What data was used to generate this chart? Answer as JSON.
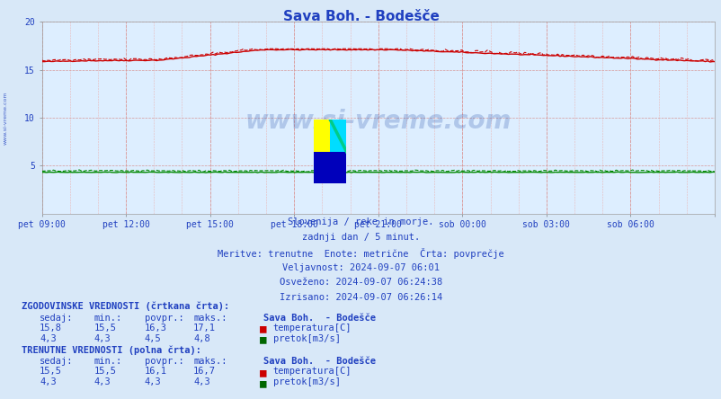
{
  "title": "Sava Boh. - Bodešče",
  "bg_color": "#d8e8f8",
  "plot_bg_color": "#ddeeff",
  "title_color": "#2040c0",
  "text_color": "#2040c0",
  "grid_color": "#e8a0a0",
  "ylim": [
    0,
    20
  ],
  "y_label_ticks": [
    5,
    10,
    15,
    20
  ],
  "x_tick_labels": [
    "pet 09:00",
    "pet 12:00",
    "pet 15:00",
    "pet 18:00",
    "pet 21:00",
    "sob 00:00",
    "sob 03:00",
    "sob 06:00"
  ],
  "n_points": 288,
  "temp_color": "#cc0000",
  "flow_color": "#008800",
  "subtitle_lines": [
    "Slovenija / reke in morje.",
    "zadnji dan / 5 minut.",
    "Meritve: trenutne  Enote: metrične  Črta: povprečje",
    "Veljavnost: 2024-09-07 06:01",
    "Osveženo: 2024-09-07 06:24:38",
    "Izrisano: 2024-09-07 06:26:14"
  ],
  "hist_label": "ZGODOVINSKE VREDNOSTI (črtkana črta):",
  "curr_label": "TRENUTNE VREDNOSTI (polna črta):",
  "table_header": [
    "sedaj:",
    "min.:",
    "povpr.:",
    "maks.:",
    "Sava Boh.  - Bodešče"
  ],
  "hist_temp_row": [
    "15,8",
    "15,5",
    "16,3",
    "17,1",
    "temperatura[C]"
  ],
  "hist_flow_row": [
    "4,3",
    "4,3",
    "4,5",
    "4,8",
    "pretok[m3/s]"
  ],
  "curr_temp_row": [
    "15,5",
    "15,5",
    "16,1",
    "16,7",
    "temperatura[C]"
  ],
  "curr_flow_row": [
    "4,3",
    "4,3",
    "4,3",
    "4,3",
    "pretok[m3/s]"
  ],
  "temp_color_hist_square": "#cc0000",
  "flow_color_hist_square": "#006600",
  "temp_color_curr_square": "#cc0000",
  "flow_color_curr_square": "#006600"
}
